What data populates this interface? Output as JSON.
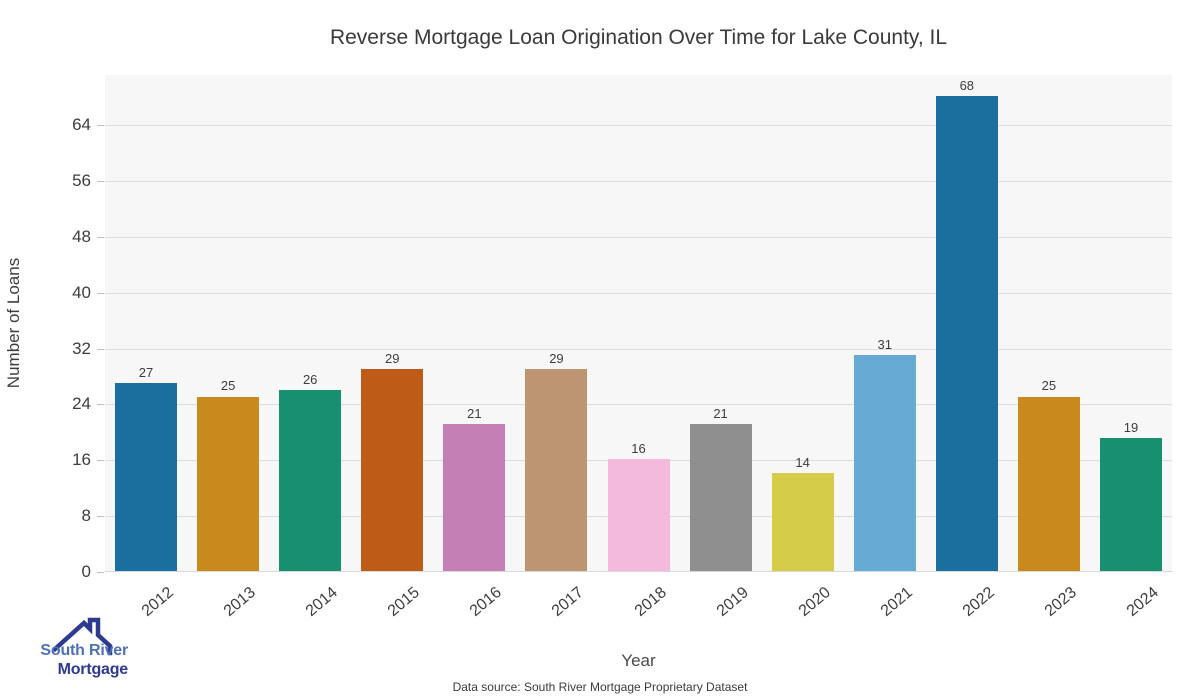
{
  "chart_data": {
    "type": "bar",
    "title": "Reverse Mortgage Loan Origination Over Time for Lake County, IL",
    "xlabel": "Year",
    "ylabel": "Number of Loans",
    "categories": [
      "2012",
      "2013",
      "2014",
      "2015",
      "2016",
      "2017",
      "2018",
      "2019",
      "2020",
      "2021",
      "2022",
      "2023",
      "2024"
    ],
    "values": [
      27,
      25,
      26,
      29,
      21,
      29,
      16,
      21,
      14,
      31,
      68,
      25,
      19
    ],
    "bar_colors": [
      "#1b6f9e",
      "#c98a1d",
      "#189070",
      "#bd5b17",
      "#c47fb5",
      "#bd9573",
      "#f3bade",
      "#8f8f8f",
      "#d5cc49",
      "#67abd5",
      "#1b6f9e",
      "#c98a1d",
      "#189070"
    ],
    "yticks": [
      0,
      8,
      16,
      24,
      32,
      40,
      48,
      56,
      64
    ],
    "ylim": [
      0,
      71.2
    ],
    "grid": "horizontal",
    "legend": "none",
    "value_labels_shown": true,
    "plot_bg_color": "#f7f7f7",
    "gridline_color": "#dcdcdc"
  },
  "footer": {
    "data_source": "Data source: South River Mortgage Proprietary Dataset"
  },
  "logo": {
    "line1": "South River",
    "line2": "Mortgage",
    "line1_color": "#5070b5",
    "line2_color": "#2d3a8f",
    "icon_color": "#2d3a8f"
  }
}
